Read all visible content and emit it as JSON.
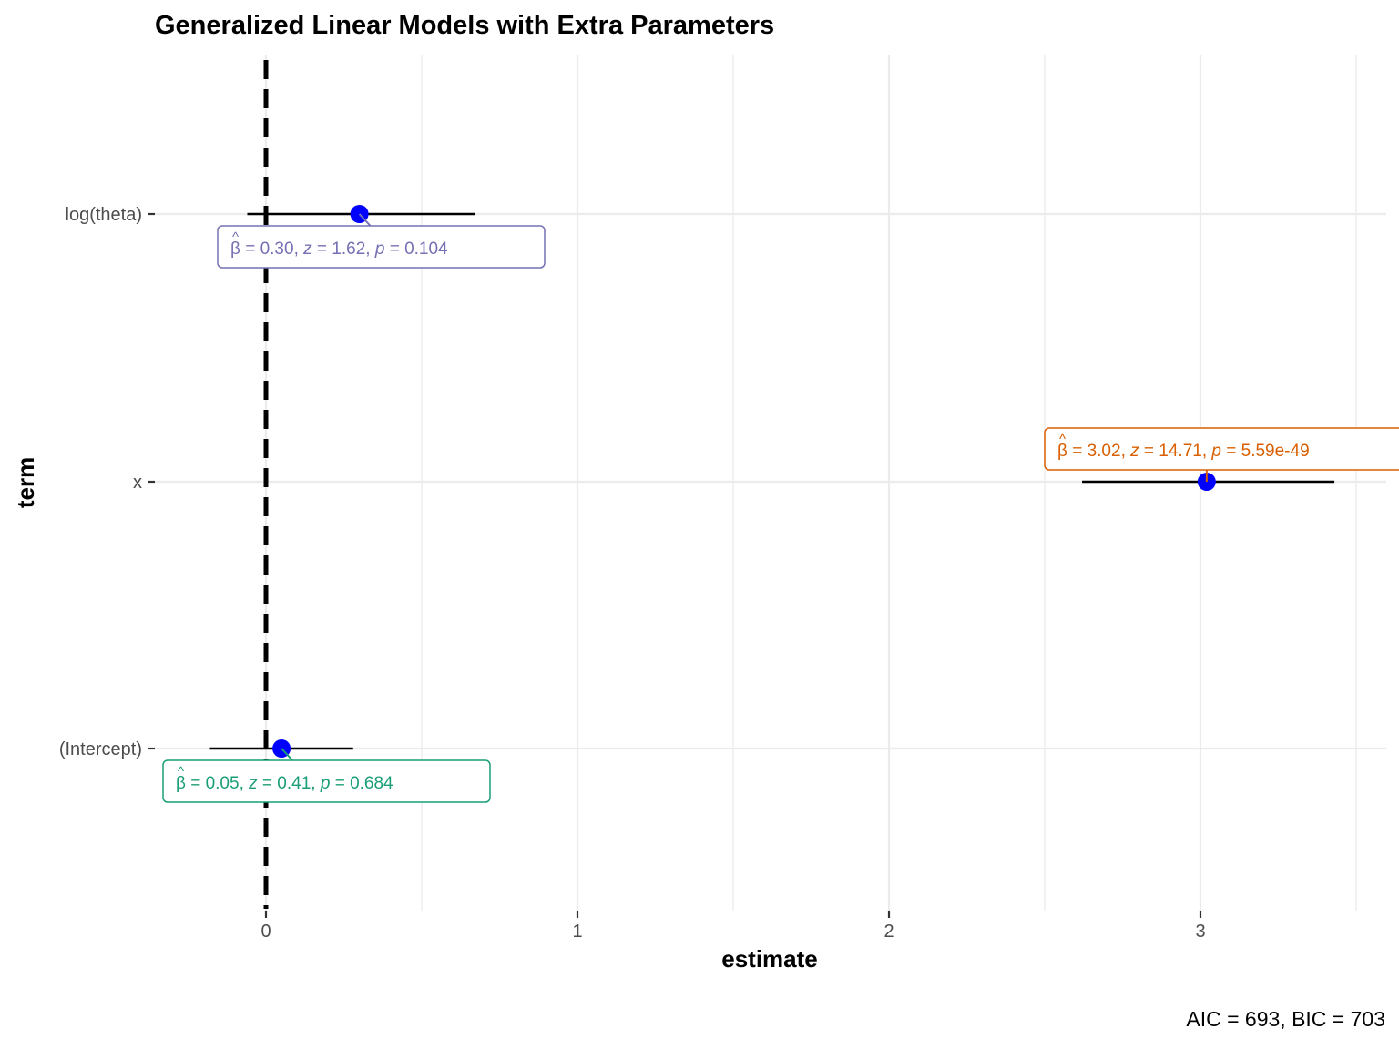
{
  "chart_data": {
    "type": "scatter",
    "subtype": "forest-plot",
    "title": "Generalized Linear Models with Extra Parameters",
    "xlabel": "estimate",
    "ylabel": "term",
    "caption": "AIC = 693, BIC = 703",
    "xlim": [
      -0.4,
      3.6
    ],
    "xticks": [
      0,
      1,
      2,
      3
    ],
    "xtick_labels": [
      "0",
      "1",
      "2",
      "3"
    ],
    "reference_line": 0,
    "grid": true,
    "point_color": "#0000ff",
    "terms": [
      {
        "term": "log(theta)",
        "estimate": 0.3,
        "conf_low": -0.06,
        "conf_high": 0.67,
        "label": {
          "beta": "0.30",
          "stat_name": "z",
          "stat": "1.62",
          "p": "0.104"
        },
        "label_color": "#7570b3",
        "label_position": "below"
      },
      {
        "term": "x",
        "estimate": 3.02,
        "conf_low": 2.62,
        "conf_high": 3.43,
        "label": {
          "beta": "3.02",
          "stat_name": "z",
          "stat": "14.71",
          "p": "5.59e-49"
        },
        "label_color": "#d95f02",
        "label_position": "above"
      },
      {
        "term": "(Intercept)",
        "estimate": 0.05,
        "conf_low": -0.18,
        "conf_high": 0.28,
        "label": {
          "beta": "0.05",
          "stat_name": "z",
          "stat": "0.41",
          "p": "0.684"
        },
        "label_color": "#1b9e77",
        "label_position": "below"
      }
    ]
  }
}
